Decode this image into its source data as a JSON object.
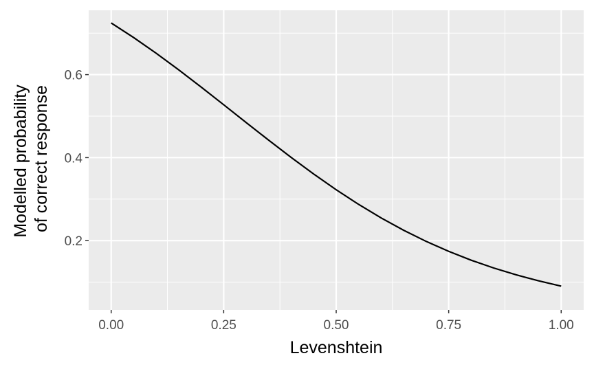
{
  "chart_data": {
    "type": "line",
    "title": "",
    "xlabel": "Levenshtein",
    "ylabel": [
      "Modelled probability",
      "of correct response"
    ],
    "xlim": [
      -0.05,
      1.05
    ],
    "ylim": [
      0.033,
      0.755
    ],
    "x_ticks": [
      0.0,
      0.25,
      0.5,
      0.75,
      1.0
    ],
    "x_tick_labels": [
      "0.00",
      "0.25",
      "0.50",
      "0.75",
      "1.00"
    ],
    "x_minor_ticks": [
      0.125,
      0.375,
      0.625,
      0.875
    ],
    "y_ticks": [
      0.2,
      0.4,
      0.6
    ],
    "y_tick_labels": [
      "0.2",
      "0.4",
      "0.6"
    ],
    "y_minor_ticks": [
      0.1,
      0.3,
      0.5,
      0.7
    ],
    "grid": true,
    "legend": "none",
    "series": [
      {
        "x": [
          0.0,
          0.05,
          0.1,
          0.15,
          0.2,
          0.25,
          0.3,
          0.35,
          0.4,
          0.45,
          0.5,
          0.55,
          0.6,
          0.65,
          0.7,
          0.75,
          0.8,
          0.85,
          0.9,
          0.95,
          1.0
        ],
        "y": [
          0.7245,
          0.6893,
          0.6515,
          0.6115,
          0.57,
          0.5274,
          0.4845,
          0.442,
          0.4004,
          0.3605,
          0.3226,
          0.2872,
          0.2546,
          0.2249,
          0.1981,
          0.1741,
          0.1528,
          0.134,
          0.1175,
          0.103,
          0.0903
        ],
        "color": "#000000"
      }
    ]
  }
}
